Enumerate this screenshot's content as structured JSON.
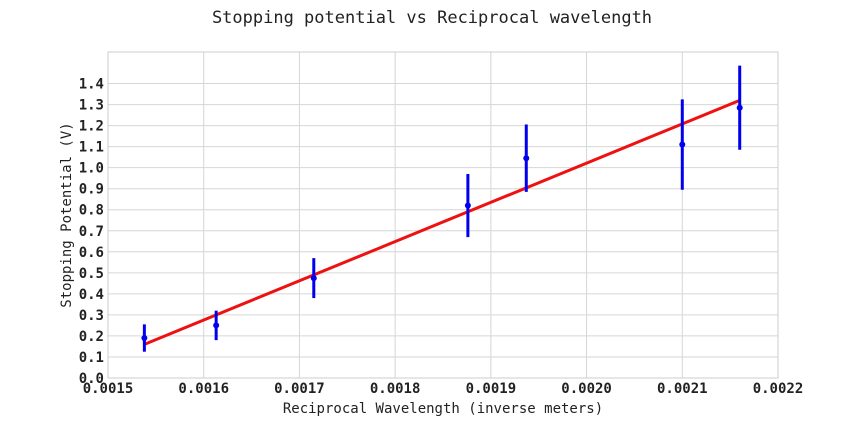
{
  "chart_data": {
    "type": "scatter",
    "title": "Stopping potential vs Reciprocal wavelength",
    "xlabel": "Reciprocal Wavelength (inverse meters)",
    "ylabel": "Stopping Potential (V)",
    "xlim": [
      0.0015,
      0.0022
    ],
    "ylim": [
      0.0,
      1.55
    ],
    "x_ticks": [
      "0.0015",
      "0.0016",
      "0.0017",
      "0.0018",
      "0.0019",
      "0.0020",
      "0.0021",
      "0.0022"
    ],
    "y_ticks": [
      "0.0",
      "0.1",
      "0.2",
      "0.3",
      "0.4",
      "0.5",
      "0.6",
      "0.7",
      "0.8",
      "0.9",
      "1.0",
      "1.1",
      "1.2",
      "1.3",
      "1.4"
    ],
    "grid": true,
    "points": [
      {
        "x": 0.001538,
        "y": 0.19,
        "yerr": 0.065
      },
      {
        "x": 0.001613,
        "y": 0.25,
        "yerr": 0.07
      },
      {
        "x": 0.001715,
        "y": 0.475,
        "yerr": 0.095
      },
      {
        "x": 0.001876,
        "y": 0.82,
        "yerr": 0.15
      },
      {
        "x": 0.001937,
        "y": 1.045,
        "yerr": 0.16
      },
      {
        "x": 0.0021,
        "y": 1.11,
        "yerr": 0.215
      },
      {
        "x": 0.00216,
        "y": 1.285,
        "yerr": 0.2
      }
    ],
    "fit_line": {
      "x": [
        0.001538,
        0.00216
      ],
      "y": [
        0.16,
        1.32
      ]
    },
    "colors": {
      "points": "#0000ee",
      "errorbars": "#0000ee",
      "fit": "#ee1111"
    }
  }
}
